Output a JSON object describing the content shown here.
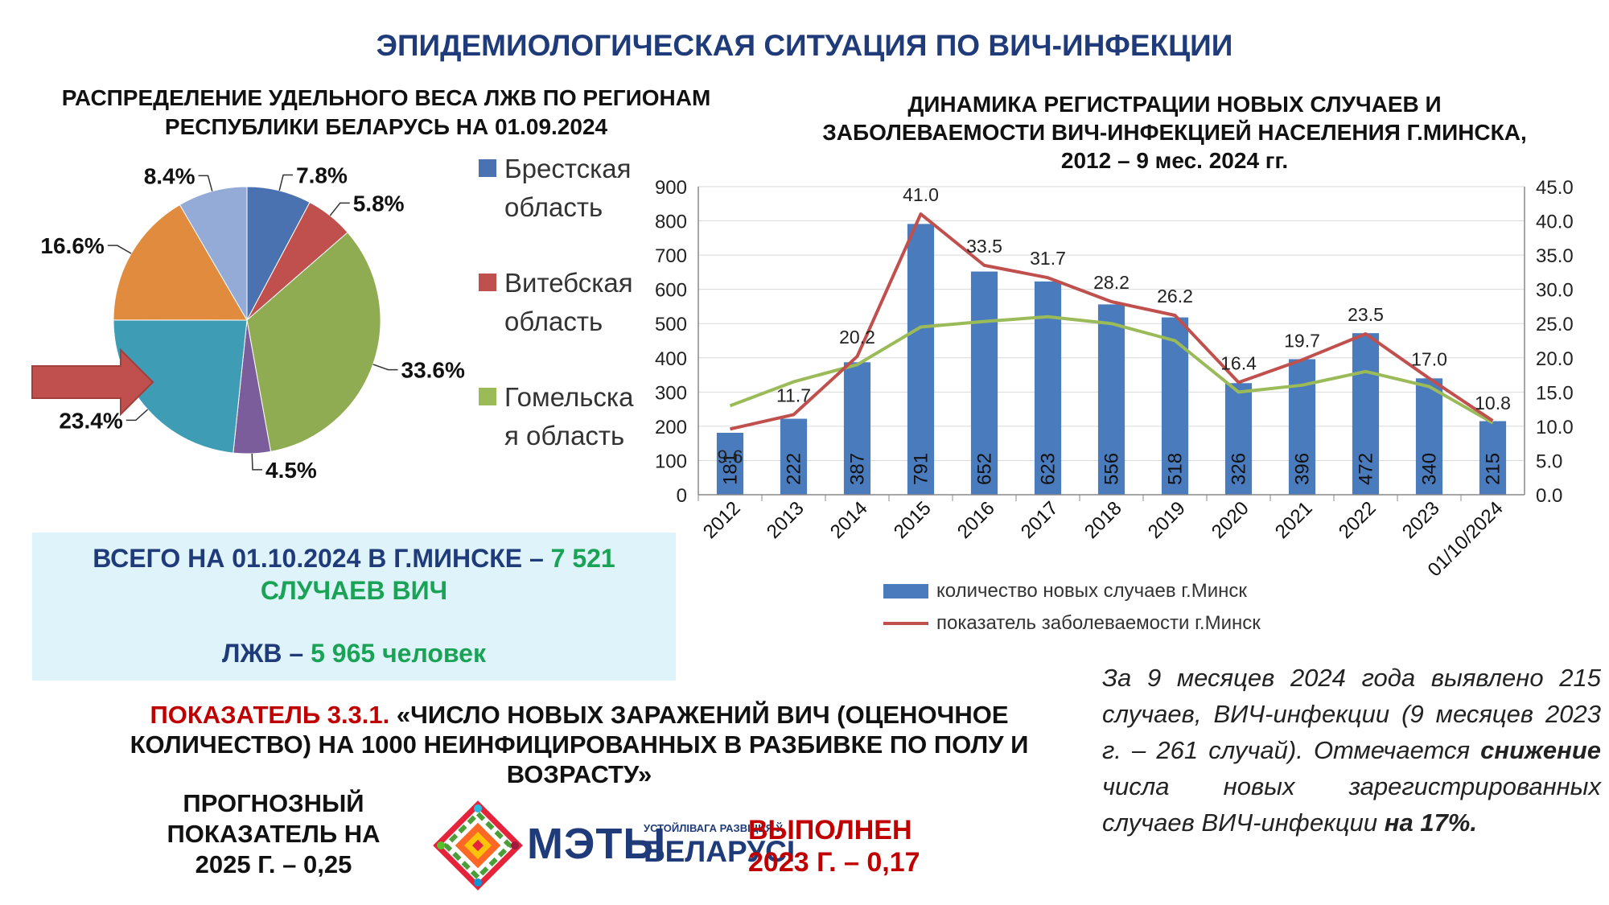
{
  "main_title": "ЭПИДЕМИОЛОГИЧЕСКАЯ СИТУАЦИЯ ПО ВИЧ-ИНФЕКЦИИ",
  "pie": {
    "title_line1": "РАСПРЕДЕЛЕНИЕ УДЕЛЬНОГО ВЕСА ЛЖВ ПО РЕГИОНАМ",
    "title_line2": "РЕСПУБЛИКИ БЕЛАРУСЬ НА 01.09.2024",
    "legend": [
      {
        "line1": "Брестская",
        "line2": "область",
        "color": "#4a72b0"
      },
      {
        "line1": "Витебская",
        "line2": "область",
        "color": "#c0504d"
      },
      {
        "line1": "Гомельска",
        "line2": "я область",
        "color": "#9bbb59"
      }
    ]
  },
  "bar": {
    "title_line1": "ДИНАМИКА РЕГИСТРАЦИИ НОВЫХ СЛУЧАЕВ И",
    "title_line2": "ЗАБОЛЕВАЕМОСТИ ВИЧ-ИНФЕКЦИЕЙ НАСЕЛЕНИЯ Г.МИНСКА,",
    "title_line3": "2012 – 9 мес. 2024 гг.",
    "legend_bar": "количество новых случаев г.Минск",
    "legend_line": "показатель заболеваемости г.Минск"
  },
  "chart_data": [
    {
      "type": "pie",
      "values": [
        7.8,
        5.8,
        33.6,
        4.5,
        23.4,
        16.6,
        8.4
      ],
      "labels": [
        "7.8%",
        "5.8%",
        "33.6%",
        "4.5%",
        "23.4%",
        "16.6%",
        "8.4%"
      ],
      "legend": [
        "Брестская область",
        "Витебская область",
        "Гомельская область"
      ],
      "colors": [
        "#4a72b0",
        "#c0504d",
        "#8fac52",
        "#7a5d9a",
        "#3f9cb5",
        "#e08b3e",
        "#94abd8"
      ]
    },
    {
      "type": "bar",
      "categories": [
        "2012",
        "2013",
        "2014",
        "2015",
        "2016",
        "2017",
        "2018",
        "2019",
        "2020",
        "2021",
        "2022",
        "2023",
        "01/10/2024"
      ],
      "series": [
        {
          "name": "количество новых случаев г.Минск",
          "type": "bar",
          "axis": "left",
          "color": "#4a7bbd",
          "values": [
            181,
            222,
            387,
            791,
            652,
            623,
            556,
            518,
            326,
            396,
            472,
            340,
            215
          ]
        },
        {
          "name": "показатель заболеваемости г.Минск",
          "type": "line",
          "axis": "right",
          "color": "#c0504d",
          "values": [
            9.6,
            11.7,
            20.2,
            41.0,
            33.5,
            31.7,
            28.2,
            26.2,
            16.4,
            19.7,
            23.5,
            17.0,
            10.8
          ]
        },
        {
          "type": "line",
          "axis": "right",
          "color": "#9bbb59",
          "values": [
            13.0,
            16.5,
            19.0,
            24.5,
            25.3,
            26.0,
            25.0,
            22.5,
            15.0,
            16.0,
            18.0,
            15.8,
            10.5
          ]
        }
      ],
      "y_left_range": [
        0,
        900
      ],
      "y_left_ticks": [
        "0",
        "100",
        "200",
        "300",
        "400",
        "500",
        "600",
        "700",
        "800",
        "900"
      ],
      "y_right_range": [
        0,
        45
      ],
      "y_right_ticks": [
        "0.0",
        "5.0",
        "10.0",
        "15.0",
        "20.0",
        "25.0",
        "30.0",
        "35.0",
        "40.0",
        "45.0"
      ]
    }
  ],
  "total": {
    "prefix": "ВСЕГО НА 01.10.2024 В Г.МИНСКЕ –",
    "cases_value": "7 521",
    "cases_unit": "СЛУЧАЕВ ВИЧ",
    "plhiv_label": "ЛЖВ –",
    "plhiv_value": "5 965 человек"
  },
  "indicator": {
    "label": "ПОКАЗАТЕЛЬ 3.3.1.",
    "text_line1": "«ЧИСЛО НОВЫХ ЗАРАЖЕНИЙ ВИЧ (ОЦЕНОЧНОЕ",
    "text_line2": "КОЛИЧЕСТВО) НА 1000 НЕИНФИЦИРОВАННЫХ В РАЗБИВКЕ ПО ПОЛУ И",
    "text_line3": "ВОЗРАСТУ»"
  },
  "forecast": {
    "line1": "ПРОГНОЗНЫЙ",
    "line2": "ПОКАЗАТЕЛЬ НА",
    "line3": "2025 Г. – 0,25"
  },
  "done": {
    "line1": "ВЫПОЛНЕН",
    "line2": "2023 Г. – 0,17"
  },
  "logo": {
    "big": "МЭТЫ",
    "small": "УСТОЙЛІВАГА РАЗВІЦЦЯ Ў",
    "country": "БЕЛАРУСІ"
  },
  "note": {
    "part1": "За 9 месяцев 2024 года выявлено 215 случаев, ВИЧ-инфекции (9 месяцев 2023 г. – 261 случай). Отмечается ",
    "bold1": "снижение",
    "part2": " числа новых зарегистрированных случаев ВИЧ-инфекции ",
    "bold2": "на 17%."
  }
}
